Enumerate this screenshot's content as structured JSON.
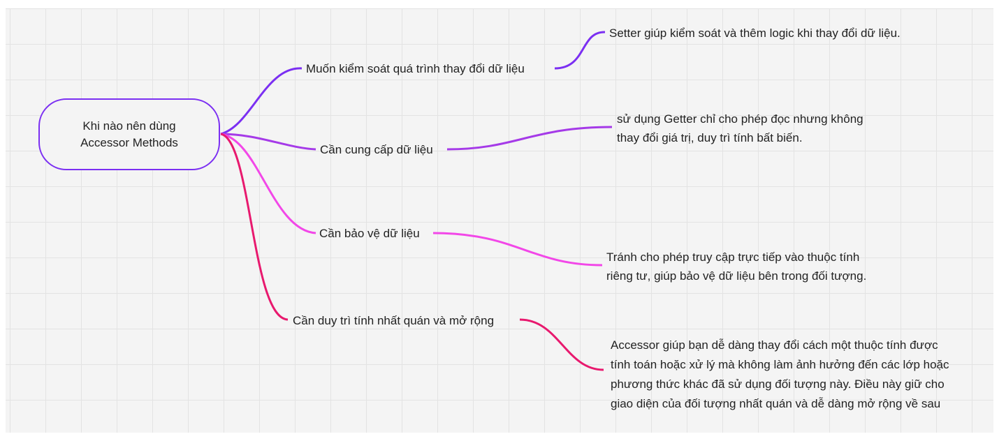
{
  "root": {
    "line1": "Khi nào nên dùng",
    "line2": "Accessor Methods",
    "border_color": "#7b2ff2"
  },
  "branches": [
    {
      "label": "Muốn kiểm soát quá trình thay đổi dữ liệu",
      "color": "#7b2ff2",
      "detail": [
        "Setter giúp kiểm soát và thêm logic khi thay đổi dữ liệu."
      ]
    },
    {
      "label": "Cần cung cấp dữ liệu",
      "color": "#a53ae8",
      "detail": [
        "sử dụng Getter chỉ cho phép đọc nhưng không",
        "thay đổi giá trị, duy trì tính bất biến."
      ]
    },
    {
      "label": "Cần bảo vệ dữ liệu",
      "color": "#f247e8",
      "detail": [
        "Tránh cho phép truy cập trực tiếp vào thuộc tính",
        "riêng tư, giúp bảo vệ dữ liệu bên trong đối tượng."
      ]
    },
    {
      "label": "Cần duy trì tính nhất quán và mở rộng",
      "color": "#e8196e",
      "detail": [
        "Accessor giúp bạn dễ dàng thay đổi cách một thuộc tính được",
        "tính toán hoặc xử lý mà không làm ảnh hưởng đến các lớp hoặc",
        "phương thức khác đã sử dụng đối tượng này. Điều này giữ cho",
        "giao diện của đối tượng nhất quán và dễ dàng mở rộng về sau"
      ]
    }
  ]
}
